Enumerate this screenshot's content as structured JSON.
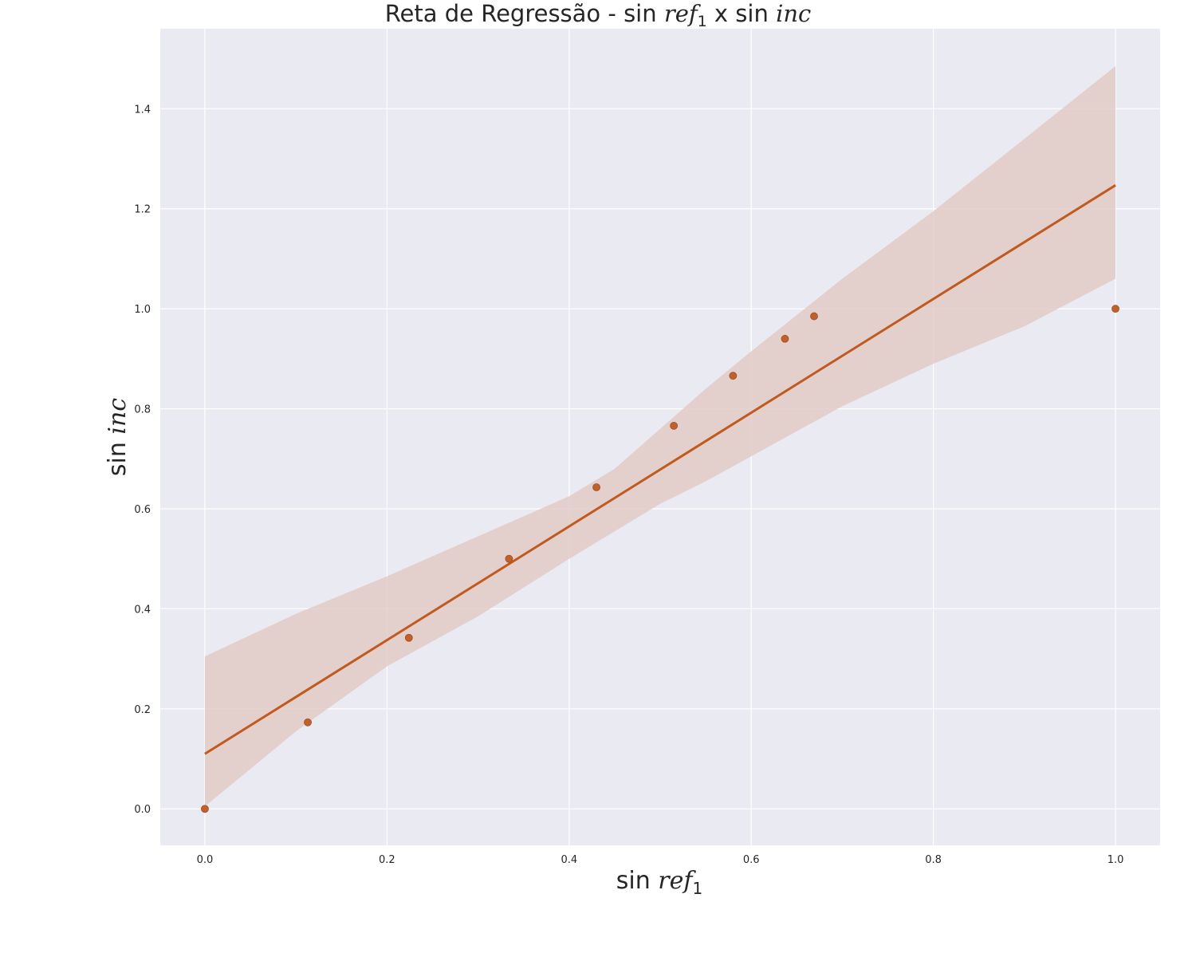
{
  "chart_data": {
    "type": "scatter",
    "title": {
      "prefix": "Reta de Regressão - sin ",
      "x_var": "ref",
      "x_sub": "1",
      "joiner": " x sin ",
      "y_var": "inc"
    },
    "xlabel": {
      "fn": "sin ",
      "var": "ref",
      "sub": "1"
    },
    "ylabel": {
      "fn": "sin ",
      "var": "inc"
    },
    "xlim": [
      -0.049,
      1.049
    ],
    "ylim": [
      -0.073,
      1.56
    ],
    "xticks": [
      0.0,
      0.2,
      0.4,
      0.6,
      0.8,
      1.0
    ],
    "xtick_labels": [
      "0.0",
      "0.2",
      "0.4",
      "0.6",
      "0.8",
      "1.0"
    ],
    "yticks": [
      0.0,
      0.2,
      0.4,
      0.6,
      0.8,
      1.0,
      1.2,
      1.4
    ],
    "ytick_labels": [
      "0.0",
      "0.2",
      "0.4",
      "0.6",
      "0.8",
      "1.0",
      "1.2",
      "1.4"
    ],
    "grid": true,
    "legend": "none",
    "colors": {
      "background": "#eaeaf2",
      "grid": "#ffffff",
      "points": "#c0602b",
      "line": "#c05a1e",
      "band": "#e2cac5"
    },
    "points": [
      {
        "x": 0.0,
        "y": 0.0
      },
      {
        "x": 0.113,
        "y": 0.173
      },
      {
        "x": 0.224,
        "y": 0.342
      },
      {
        "x": 0.334,
        "y": 0.5
      },
      {
        "x": 0.43,
        "y": 0.643
      },
      {
        "x": 0.515,
        "y": 0.766
      },
      {
        "x": 0.58,
        "y": 0.866
      },
      {
        "x": 0.637,
        "y": 0.94
      },
      {
        "x": 0.669,
        "y": 0.985
      },
      {
        "x": 1.0,
        "y": 1.0
      }
    ],
    "regression_line": {
      "x": [
        0.0,
        1.0
      ],
      "y": [
        0.11,
        1.247
      ]
    },
    "confidence_band": {
      "x": [
        0.0,
        0.1,
        0.2,
        0.3,
        0.4,
        0.45,
        0.5,
        0.55,
        0.6,
        0.7,
        0.8,
        0.9,
        1.0
      ],
      "upper": [
        0.305,
        0.39,
        0.465,
        0.545,
        0.625,
        0.68,
        0.76,
        0.84,
        0.915,
        1.06,
        1.195,
        1.34,
        1.485
      ],
      "lower": [
        0.005,
        0.155,
        0.285,
        0.385,
        0.5,
        0.555,
        0.61,
        0.655,
        0.705,
        0.805,
        0.89,
        0.965,
        1.06
      ]
    }
  }
}
